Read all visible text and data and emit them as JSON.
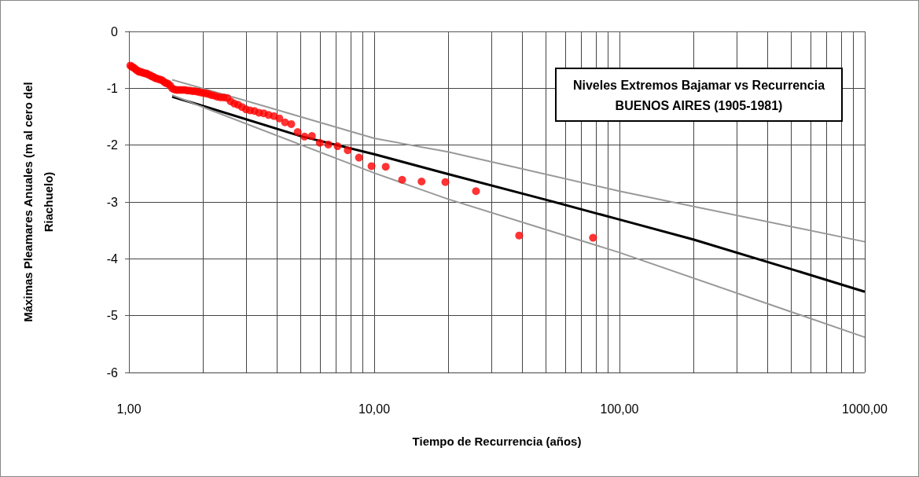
{
  "chart_data": {
    "type": "scatter",
    "title": "Niveles Extremos Bajamar vs Recurrencia",
    "subtitle": "BUENOS AIRES (1905-1981)",
    "xlabel": "Tiempo de Recurrencia (años)",
    "ylabel": "Máximas Pleamares Anuales (m al cero del Riachuelo)",
    "log": "x",
    "grid": true,
    "xlim": [
      1,
      1000
    ],
    "xticks": [
      {
        "value": 1,
        "label": "1,00"
      },
      {
        "value": 2,
        "label": null
      },
      {
        "value": 3,
        "label": null
      },
      {
        "value": 4,
        "label": null
      },
      {
        "value": 5,
        "label": null
      },
      {
        "value": 6,
        "label": null
      },
      {
        "value": 7,
        "label": null
      },
      {
        "value": 8,
        "label": null
      },
      {
        "value": 9,
        "label": null
      },
      {
        "value": 10,
        "label": "10,00"
      },
      {
        "value": 20,
        "label": null
      },
      {
        "value": 30,
        "label": null
      },
      {
        "value": 40,
        "label": null
      },
      {
        "value": 50,
        "label": null
      },
      {
        "value": 60,
        "label": null
      },
      {
        "value": 70,
        "label": null
      },
      {
        "value": 80,
        "label": null
      },
      {
        "value": 90,
        "label": null
      },
      {
        "value": 100,
        "label": "100,00"
      },
      {
        "value": 200,
        "label": null
      },
      {
        "value": 300,
        "label": null
      },
      {
        "value": 400,
        "label": null
      },
      {
        "value": 500,
        "label": null
      },
      {
        "value": 600,
        "label": null
      },
      {
        "value": 700,
        "label": null
      },
      {
        "value": 800,
        "label": null
      },
      {
        "value": 900,
        "label": null
      },
      {
        "value": 1000,
        "label": "1000,00"
      }
    ],
    "ylim": [
      -6,
      0
    ],
    "yticks": [
      -6,
      -5,
      -4,
      -3,
      -2,
      -1,
      0
    ],
    "series": [
      {
        "color": "#ff0000",
        "marker": "circle",
        "x": [
          78,
          39,
          26,
          19.5,
          15.6,
          13,
          11.14,
          9.75,
          8.67,
          7.8,
          7.09,
          6.5,
          6,
          5.57,
          5.2,
          4.875,
          4.59,
          4.33,
          4.105,
          3.9,
          3.71,
          3.545,
          3.39,
          3.25,
          3.12,
          3,
          2.89,
          2.786,
          2.69,
          2.6,
          2.516,
          2.4375,
          2.364,
          2.294,
          2.229,
          2.167,
          2.108,
          2.053,
          2,
          1.95,
          1.902,
          1.857,
          1.814,
          1.773,
          1.733,
          1.696,
          1.66,
          1.625,
          1.592,
          1.56,
          1.529,
          1.5,
          1.472,
          1.444,
          1.418,
          1.393,
          1.368,
          1.345,
          1.322,
          1.3,
          1.279,
          1.258,
          1.238,
          1.219,
          1.2,
          1.182,
          1.164,
          1.147,
          1.13,
          1.114,
          1.099,
          1.083,
          1.068,
          1.054,
          1.04,
          1.026,
          1.013
        ],
        "values": [
          -3.63,
          -3.59,
          -2.81,
          -2.65,
          -2.64,
          -2.61,
          -2.38,
          -2.37,
          -2.22,
          -2.09,
          -2.02,
          -1.99,
          -1.96,
          -1.84,
          -1.85,
          -1.77,
          -1.63,
          -1.6,
          -1.53,
          -1.49,
          -1.47,
          -1.44,
          -1.43,
          -1.4,
          -1.39,
          -1.37,
          -1.33,
          -1.29,
          -1.27,
          -1.23,
          -1.17,
          -1.16,
          -1.16,
          -1.15,
          -1.13,
          -1.12,
          -1.1,
          -1.09,
          -1.08,
          -1.07,
          -1.06,
          -1.05,
          -1.05,
          -1.04,
          -1.04,
          -1.03,
          -1.03,
          -1.03,
          -1.03,
          -1.03,
          -1.02,
          -1,
          -0.95,
          -0.92,
          -0.91,
          -0.89,
          -0.86,
          -0.85,
          -0.84,
          -0.83,
          -0.82,
          -0.8,
          -0.79,
          -0.77,
          -0.76,
          -0.74,
          -0.74,
          -0.73,
          -0.72,
          -0.71,
          -0.71,
          -0.69,
          -0.67,
          -0.65,
          -0.63,
          -0.62,
          -0.6
        ]
      },
      {
        "type": "line",
        "color": "#000000",
        "marker": "none",
        "line_style": "solid",
        "x": [
          1.5,
          2,
          5,
          10,
          20,
          50,
          100,
          200,
          500,
          1000
        ],
        "values": [
          -1.15,
          -1.31,
          -1.84,
          -2.16,
          -2.51,
          -2.96,
          -3.31,
          -3.66,
          -4.18,
          -4.58
        ]
      },
      {
        "type": "line",
        "color": "#999999",
        "marker": "none",
        "line_style": "solid",
        "x": [
          1.5,
          3,
          10,
          20,
          100,
          1000
        ],
        "values": [
          -0.85,
          -1.22,
          -1.88,
          -2.12,
          -2.81,
          -3.7
        ]
      },
      {
        "type": "line",
        "color": "#999999",
        "marker": "none",
        "line_style": "solid",
        "x": [
          1.5,
          2,
          10,
          20,
          100,
          1000
        ],
        "values": [
          -1.12,
          -1.33,
          -2.49,
          -2.95,
          -3.89,
          -5.38
        ]
      }
    ]
  }
}
